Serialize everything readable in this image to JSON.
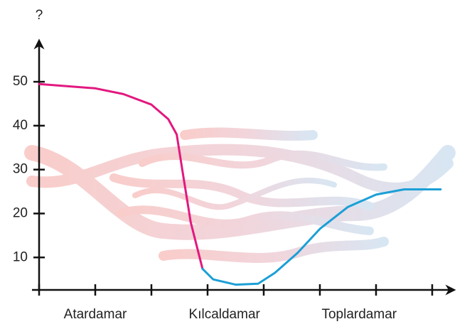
{
  "chart_data": {
    "type": "line",
    "y_label": "?",
    "xlim": [
      0,
      7.4
    ],
    "xticks": [
      0,
      1,
      2,
      3,
      4,
      5,
      6,
      7
    ],
    "x_labels": [
      {
        "value": 1,
        "label": "Atardamar"
      },
      {
        "value": 3.3,
        "label": "Kılcaldamar"
      },
      {
        "value": 5.7,
        "label": "Toplardamar"
      }
    ],
    "ylim": [
      2.6,
      59
    ],
    "yticks": [
      10,
      20,
      30,
      40,
      50
    ],
    "series": [
      {
        "color": "#e2187f",
        "x": [
          0,
          1,
          1.5,
          2,
          2.3,
          2.45,
          2.55,
          2.7,
          2.91
        ],
        "values": [
          49.5,
          48.5,
          47.2,
          44.8,
          41.5,
          38,
          30,
          18,
          7.4
        ]
      },
      {
        "color": "#1c9fd6",
        "x": [
          2.91,
          3.1,
          3.5,
          3.9,
          4.2,
          4.6,
          5,
          5.5,
          6,
          6.5,
          7.15
        ],
        "values": [
          7.4,
          5.0,
          3.8,
          4.0,
          6.5,
          11,
          16.5,
          21.5,
          24.3,
          25.5,
          25.5
        ]
      }
    ]
  }
}
